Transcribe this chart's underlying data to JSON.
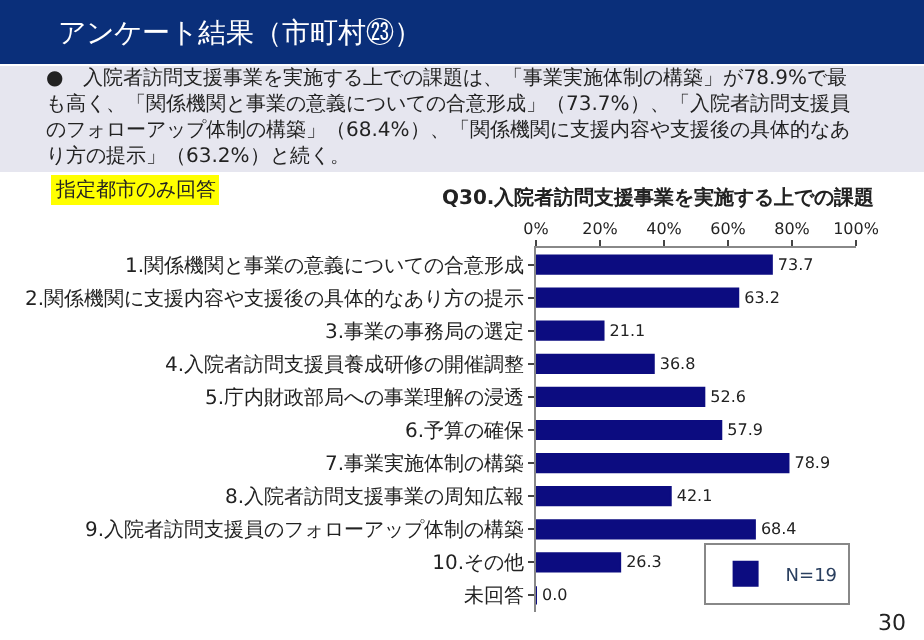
{
  "chart_data": {
    "type": "bar",
    "orientation": "horizontal",
    "title": "Q30.入院者訪問支援事業を実施する上での課題",
    "annotations": [
      "アンケート結果（市町村㉓）",
      "●　入院者訪問支援事業を実施する上での課題は、「事業実施体制の構築」が78.9%で最も高く、「関係機関と事業の意義についての合意形成」（73.7%）、「入院者訪問支援員のフォローアップ体制の構築」（68.4%）、「関係機関に支援内容や支援後の具体的なあり方の提示」（63.2%）と続く。",
      "指定都市のみ回答",
      "30"
    ],
    "categories": [
      "1.関係機関と事業の意義についての合意形成",
      "2.関係機関に支援内容や支援後の具体的なあり方の提示",
      "3.事業の事務局の選定",
      "4.入院者訪問支援員養成研修の開催調整",
      "5.庁内財政部局への事業理解の浸透",
      "6.予算の確保",
      "7.事業実施体制の構築",
      "8.入院者訪問支援事業の周知広報",
      "9.入院者訪問支援員のフォローアップ体制の構築",
      "10.その他",
      "未回答"
    ],
    "series": [
      {
        "name": "N=19",
        "color": "#0c0c80",
        "values": [
          73.7,
          63.2,
          21.1,
          36.8,
          52.6,
          57.9,
          78.9,
          42.1,
          68.4,
          26.3,
          0.0
        ],
        "value_labels": [
          "73.7",
          "63.2",
          "21.1",
          "36.8",
          "52.6",
          "57.9",
          "78.9",
          "42.1",
          "68.4",
          "26.3",
          "0.0"
        ]
      }
    ],
    "xlim": [
      0,
      100
    ],
    "xticks": [
      {
        "value": 0,
        "label": "0%"
      },
      {
        "value": 20,
        "label": "20%"
      },
      {
        "value": 40,
        "label": "40%"
      },
      {
        "value": 60,
        "label": "60%"
      },
      {
        "value": 80,
        "label": "80%"
      },
      {
        "value": 100,
        "label": "100%"
      }
    ],
    "legend": "bottom right"
  }
}
